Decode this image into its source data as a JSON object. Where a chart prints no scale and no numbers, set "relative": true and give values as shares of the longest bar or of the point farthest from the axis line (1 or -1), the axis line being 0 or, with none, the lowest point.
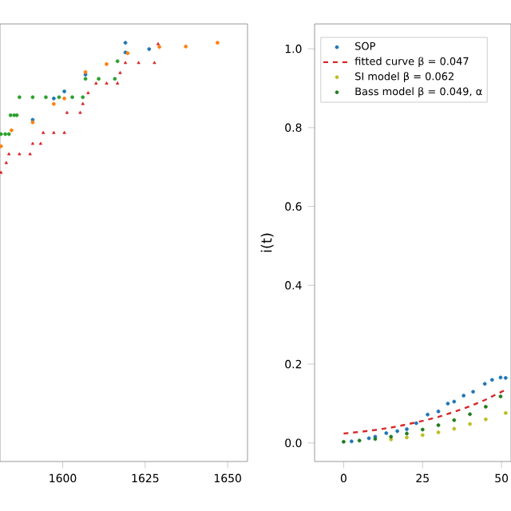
{
  "chart_data": [
    {
      "type": "scatter",
      "relative": true,
      "xlim": [
        1581,
        1656
      ],
      "xticks": [
        1600,
        1625,
        1650
      ],
      "tick_labels": "x",
      "legend": false,
      "series": [
        {
          "color": "#1f77b4",
          "marker": "circle",
          "x": [
            1590.9,
            1597.3,
            1600.5,
            1606.9,
            1619.0,
            1626.2,
            1619.0
          ],
          "values": [
            0.816,
            0.867,
            0.884,
            0.924,
            0.977,
            0.985,
            1.0
          ]
        },
        {
          "color": "#ff7f0e",
          "marker": "circle",
          "x": [
            1581.3,
            1584.5,
            1590.9,
            1597.3,
            1600.5,
            1606.9,
            1613.3,
            1619.7,
            1629.3,
            1637.3,
            1646.9
          ],
          "values": [
            0.753,
            0.791,
            0.81,
            0.854,
            0.867,
            0.93,
            0.949,
            0.975,
            0.99,
            0.991,
            1.0
          ]
        },
        {
          "color": "#2ca02c",
          "marker": "circle",
          "x": [
            1581.3,
            1582.6,
            1583.7,
            1584.2,
            1585.3,
            1586.1,
            1586.9,
            1590.9,
            1594.9,
            1598.9,
            1602.9,
            1606.1,
            1606.9,
            1610.9,
            1615.8,
            1616.6
          ],
          "values": [
            0.782,
            0.782,
            0.782,
            0.827,
            0.827,
            0.827,
            0.87,
            0.87,
            0.87,
            0.87,
            0.87,
            0.87,
            0.914,
            0.914,
            0.914,
            0.956
          ]
        },
        {
          "color": "#d62728",
          "marker": "triangle",
          "x": [
            1581.3,
            1582.9,
            1583.7,
            1586.9,
            1590.1,
            1590.9,
            1593.3,
            1594.1,
            1597.3,
            1600.5,
            1601.3,
            1605.3,
            1606.1,
            1607.7,
            1610.1,
            1613.3,
            1616.6,
            1617.4,
            1619.0,
            1623.0,
            1627.8,
            1628.9
          ],
          "values": [
            0.69,
            0.713,
            0.734,
            0.734,
            0.734,
            0.759,
            0.759,
            0.785,
            0.785,
            0.785,
            0.833,
            0.833,
            0.854,
            0.88,
            0.903,
            0.903,
            0.903,
            0.928,
            0.952,
            0.952,
            0.952,
            0.997
          ]
        }
      ]
    },
    {
      "type": "scatter",
      "ylabel": "i(t)",
      "xlim": [
        -9.2,
        53
      ],
      "ylim": [
        -0.047,
        1.063
      ],
      "xticks": [
        0,
        25,
        50
      ],
      "yticks": [
        {
          "value": 0,
          "label": "0.0"
        },
        0.2,
        0.4,
        0.6,
        0.8,
        {
          "value": 1,
          "label": "1.0"
        }
      ],
      "legend": "top left",
      "series": [
        {
          "name": "SOP",
          "color": "#1f77b4",
          "marker": "circle",
          "x": [
            2.5,
            8,
            10,
            13.5,
            17,
            20,
            23,
            26.6,
            30,
            33,
            35,
            38,
            41,
            44.7,
            47,
            49.7,
            51.3
          ],
          "values": [
            0.004,
            0.012,
            0.016,
            0.025,
            0.03,
            0.035,
            0.05,
            0.072,
            0.08,
            0.1,
            0.105,
            0.12,
            0.13,
            0.15,
            0.16,
            0.166,
            0.165
          ]
        },
        {
          "name": "fitted curve β = 0.047",
          "type": "line",
          "line_style": "dashed",
          "color": "#d62728",
          "x": [
            0,
            5,
            10,
            15,
            20,
            25,
            30,
            35,
            40,
            45,
            51.3
          ],
          "values": [
            0.024,
            0.028,
            0.033,
            0.039,
            0.047,
            0.056,
            0.066,
            0.079,
            0.093,
            0.11,
            0.135
          ]
        },
        {
          "name": "SI model β = 0.062",
          "color": "#bcbd22",
          "marker": "circle",
          "x": [
            15,
            20,
            25,
            30,
            35,
            40,
            45,
            51.3
          ],
          "values": [
            0.009,
            0.014,
            0.02,
            0.027,
            0.036,
            0.048,
            0.06,
            0.076
          ]
        },
        {
          "name": "Bass model β = 0.049, α",
          "color": "#1e7b1e",
          "marker": "circle",
          "x": [
            0,
            5,
            10,
            15,
            20,
            25,
            30,
            35,
            40,
            45,
            49.7
          ],
          "values": [
            0.003,
            0.006,
            0.01,
            0.016,
            0.024,
            0.034,
            0.045,
            0.058,
            0.073,
            0.092,
            0.118
          ]
        }
      ]
    }
  ]
}
